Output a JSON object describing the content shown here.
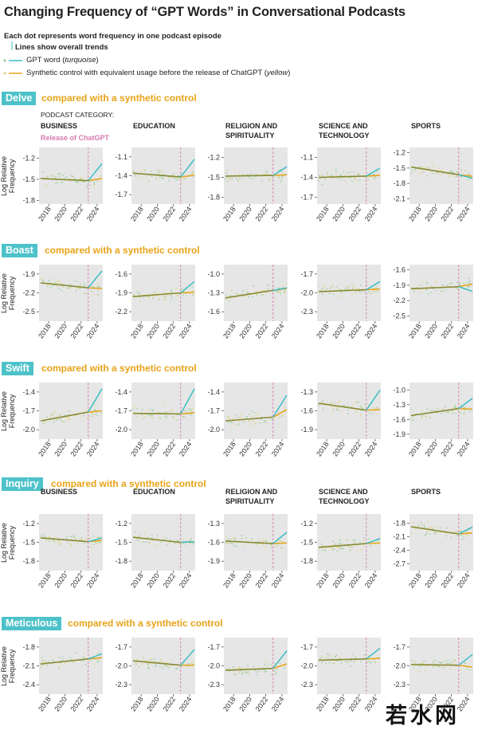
{
  "title": "Changing Frequency of “GPT Words” in Conversational Podcasts",
  "legend": {
    "dot_note": "Each dot represents word frequency in one podcast episode",
    "line_note": "Lines show overall trends",
    "gpt_label_main": "GPT word (",
    "gpt_label_color": "turquoise",
    "gpt_label_end": ")",
    "control_label_main": "Synthetic control with equivalent usage before the release of ChatGPT (",
    "control_label_color": "yellow",
    "control_label_end": ")"
  },
  "podcast_category_label": "PODCAST CATEGORY:",
  "release_label": "Release of ChatGPT",
  "y_axis_label_line1": "Log Relative",
  "y_axis_label_line2": "Frequency",
  "compared_text": "compared with a synthetic control",
  "categories": [
    "BUSINESS",
    "EDUCATION",
    "RELIGION AND SPIRITUALITY",
    "SCIENCE AND TECHNOLOGY",
    "SPORTS"
  ],
  "colors": {
    "turquoise": "#3bbec6",
    "yellow": "#e8a318",
    "olive": "#8a8a30",
    "release": "#d77bb1",
    "panel": "#e6e6e6",
    "dot_green": "#9ccfa0",
    "dot_yellow": "#e0d48a"
  },
  "chart_data": [
    {
      "word": "Delve",
      "type": "scatter",
      "x_ticks": [
        2018,
        2020,
        2022,
        2024
      ],
      "release_x": 2022.9,
      "panels": [
        {
          "category": "BUSINESS",
          "ylim": [
            -1.85,
            -1.05
          ],
          "yticks": [
            -1.2,
            -1.5,
            -1.8
          ],
          "pre": [
            -1.49,
            -1.52
          ],
          "post_gpt": -1.28,
          "post_control": -1.49
        },
        {
          "category": "EDUCATION",
          "ylim": [
            -1.85,
            -0.95
          ],
          "yticks": [
            -1.1,
            -1.4,
            -1.7
          ],
          "pre": [
            -1.36,
            -1.42
          ],
          "post_gpt": -1.14,
          "post_control": -1.39
        },
        {
          "category": "RELIGION AND SPIRITUALITY",
          "ylim": [
            -1.9,
            -1.05
          ],
          "yticks": [
            -1.2,
            -1.5,
            -1.8
          ],
          "pre": [
            -1.48,
            -1.47
          ],
          "post_gpt": -1.34,
          "post_control": -1.46
        },
        {
          "category": "SCIENCE AND TECHNOLOGY",
          "ylim": [
            -1.8,
            -0.95
          ],
          "yticks": [
            -1.1,
            -1.4,
            -1.7
          ],
          "pre": [
            -1.4,
            -1.38
          ],
          "post_gpt": -1.26,
          "post_control": -1.37
        },
        {
          "category": "SPORTS",
          "ylim": [
            -2.2,
            -1.1
          ],
          "yticks": [
            -1.2,
            -1.5,
            -1.8,
            -2.1
          ],
          "pre": [
            -1.48,
            -1.63
          ],
          "post_gpt": -1.7,
          "post_control": -1.66
        }
      ]
    },
    {
      "word": "Boast",
      "type": "scatter",
      "x_ticks": [
        2018,
        2020,
        2022,
        2024
      ],
      "release_x": 2022.9,
      "panels": [
        {
          "category": "BUSINESS",
          "ylim": [
            -2.65,
            -1.75
          ],
          "yticks": [
            -1.9,
            -2.2,
            -2.5
          ],
          "pre": [
            -2.04,
            -2.12
          ],
          "post_gpt": -1.85,
          "post_control": -2.13
        },
        {
          "category": "EDUCATION",
          "ylim": [
            -2.35,
            -1.45
          ],
          "yticks": [
            -1.6,
            -1.9,
            -2.2
          ],
          "pre": [
            -1.96,
            -1.9
          ],
          "post_gpt": -1.72,
          "post_control": -1.89
        },
        {
          "category": "RELIGION AND SPIRITUALITY",
          "ylim": [
            -1.75,
            -0.85
          ],
          "yticks": [
            -1.0,
            -1.3,
            -1.6
          ],
          "pre": [
            -1.38,
            -1.26
          ],
          "post_gpt": -1.22,
          "post_control": -1.23
        },
        {
          "category": "SCIENCE AND TECHNOLOGY",
          "ylim": [
            -2.45,
            -1.55
          ],
          "yticks": [
            -1.7,
            -2.0,
            -2.3
          ],
          "pre": [
            -1.98,
            -1.95
          ],
          "post_gpt": -1.82,
          "post_control": -1.94
        },
        {
          "category": "SPORTS",
          "ylim": [
            -2.6,
            -1.5
          ],
          "yticks": [
            -1.6,
            -1.9,
            -2.2,
            -2.5
          ],
          "pre": [
            -1.97,
            -1.93
          ],
          "post_gpt": -2.02,
          "post_control": -1.88
        }
      ]
    },
    {
      "word": "Swift",
      "type": "scatter",
      "x_ticks": [
        2018,
        2020,
        2022,
        2024
      ],
      "release_x": 2022.9,
      "panels": [
        {
          "category": "BUSINESS",
          "ylim": [
            -2.15,
            -1.25
          ],
          "yticks": [
            -1.4,
            -1.7,
            -2.0
          ],
          "pre": [
            -1.86,
            -1.72
          ],
          "post_gpt": -1.35,
          "post_control": -1.7
        },
        {
          "category": "EDUCATION",
          "ylim": [
            -2.15,
            -1.25
          ],
          "yticks": [
            -1.4,
            -1.7,
            -2.0
          ],
          "pre": [
            -1.74,
            -1.75
          ],
          "post_gpt": -1.35,
          "post_control": -1.73
        },
        {
          "category": "RELIGION AND SPIRITUALITY",
          "ylim": [
            -2.15,
            -1.25
          ],
          "yticks": [
            -1.4,
            -1.7,
            -2.0
          ],
          "pre": [
            -1.86,
            -1.8
          ],
          "post_gpt": -1.45,
          "post_control": -1.68
        },
        {
          "category": "SCIENCE AND TECHNOLOGY",
          "ylim": [
            -2.05,
            -1.15
          ],
          "yticks": [
            -1.3,
            -1.6,
            -1.9
          ],
          "pre": [
            -1.48,
            -1.59
          ],
          "post_gpt": -1.27,
          "post_control": -1.58
        },
        {
          "category": "SPORTS",
          "ylim": [
            -2.0,
            -0.85
          ],
          "yticks": [
            -1.0,
            -1.3,
            -1.6,
            -1.9
          ],
          "pre": [
            -1.52,
            -1.38
          ],
          "post_gpt": -1.17,
          "post_control": -1.39
        }
      ]
    },
    {
      "word": "Inquiry",
      "type": "scatter",
      "x_ticks": [
        2018,
        2020,
        2022,
        2024
      ],
      "release_x": 2022.9,
      "panels": [
        {
          "category": "BUSINESS",
          "ylim": [
            -1.95,
            -1.05
          ],
          "yticks": [
            -1.2,
            -1.5,
            -1.8
          ],
          "pre": [
            -1.43,
            -1.49
          ],
          "post_gpt": -1.43,
          "post_control": -1.47
        },
        {
          "category": "EDUCATION",
          "ylim": [
            -1.95,
            -1.05
          ],
          "yticks": [
            -1.2,
            -1.5,
            -1.8
          ],
          "pre": [
            -1.42,
            -1.5
          ],
          "post_gpt": -1.49,
          "post_control": -1.49
        },
        {
          "category": "RELIGION AND SPIRITUALITY",
          "ylim": [
            -2.05,
            -1.15
          ],
          "yticks": [
            -1.3,
            -1.6,
            -1.9
          ],
          "pre": [
            -1.58,
            -1.62
          ],
          "post_gpt": -1.44,
          "post_control": -1.61
        },
        {
          "category": "SCIENCE AND TECHNOLOGY",
          "ylim": [
            -1.95,
            -1.05
          ],
          "yticks": [
            -1.2,
            -1.5,
            -1.8
          ],
          "pre": [
            -1.58,
            -1.52
          ],
          "post_gpt": -1.44,
          "post_control": -1.51
        },
        {
          "category": "SPORTS",
          "ylim": [
            -2.85,
            -1.6
          ],
          "yticks": [
            -1.8,
            -2.1,
            -2.4,
            -2.7
          ],
          "pre": [
            -1.88,
            -2.04
          ],
          "post_gpt": -1.89,
          "post_control": -2.02
        }
      ]
    },
    {
      "word": "Meticulous",
      "type": "scatter",
      "x_ticks": [
        2018,
        2020,
        2022,
        2024
      ],
      "release_x": 2022.9,
      "panels": [
        {
          "category": "BUSINESS",
          "ylim": [
            -2.55,
            -1.65
          ],
          "yticks": [
            -1.8,
            -2.1,
            -2.4
          ],
          "pre": [
            -2.07,
            -1.99
          ],
          "post_gpt": -1.91,
          "post_control": -1.97
        },
        {
          "category": "EDUCATION",
          "ylim": [
            -2.45,
            -1.55
          ],
          "yticks": [
            -1.7,
            -2.0,
            -2.3
          ],
          "pre": [
            -1.92,
            -1.99
          ],
          "post_gpt": -1.74,
          "post_control": -1.99
        },
        {
          "category": "RELIGION AND SPIRITUALITY",
          "ylim": [
            -2.45,
            -1.55
          ],
          "yticks": [
            -1.7,
            -2.0,
            -2.3
          ],
          "pre": [
            -2.07,
            -2.04
          ],
          "post_gpt": -1.76,
          "post_control": -1.97
        },
        {
          "category": "SCIENCE AND TECHNOLOGY",
          "ylim": [
            -2.45,
            -1.55
          ],
          "yticks": [
            -1.7,
            -2.0,
            -2.3
          ],
          "pre": [
            -1.91,
            -1.89
          ],
          "post_gpt": -1.72,
          "post_control": -1.88
        },
        {
          "category": "SPORTS",
          "ylim": [
            -2.45,
            -1.55
          ],
          "yticks": [
            -1.7,
            -2.0,
            -2.3
          ],
          "pre": [
            -1.98,
            -1.99
          ],
          "post_gpt": -1.82,
          "post_control": -2.02
        }
      ]
    }
  ],
  "watermark": "若水网"
}
